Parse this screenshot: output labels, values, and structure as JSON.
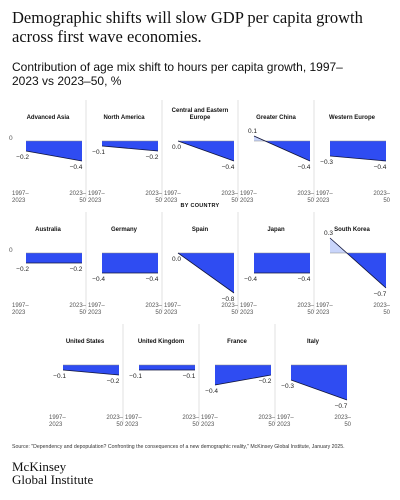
{
  "title": "Demographic shifts will slow GDP per capita growth across first wave economies.",
  "subtitle": "Contribution of age mix shift to hours per capita growth, 1997–2023 vs 2023–50, %",
  "section_label": "BY COUNTRY",
  "source": "Source: \"Dependency and depopulation? Confronting the consequences of a new demographic reality,\" McKinsey Global Institute, January 2025.",
  "brand_name": "McKinsey",
  "brand_unit": "Global Institute",
  "chart_data": [
    {
      "type": "area",
      "title": "Advanced Asia",
      "categories": [
        "1997–2023",
        "2023–50"
      ],
      "values": [
        -0.2,
        -0.4
      ],
      "value_labels": [
        "−0.2",
        "−0.4"
      ],
      "ylim": [
        -0.8,
        0.3
      ],
      "yticks": [
        0
      ],
      "color": "#2f4cf2",
      "positive_color": "#c9d5fb"
    },
    {
      "type": "area",
      "title": "North America",
      "categories": [
        "1997–2023",
        "2023–50"
      ],
      "values": [
        -0.1,
        -0.2
      ],
      "value_labels": [
        "−0.1",
        "−0.2"
      ],
      "ylim": [
        -0.8,
        0.3
      ],
      "color": "#2f4cf2",
      "positive_color": "#c9d5fb"
    },
    {
      "type": "area",
      "title": "Central and Eastern Europe",
      "categories": [
        "1997–2023",
        "2023–50"
      ],
      "values": [
        0.0,
        -0.4
      ],
      "value_labels": [
        "0.0",
        "−0.4"
      ],
      "ylim": [
        -0.8,
        0.3
      ],
      "color": "#2f4cf2",
      "positive_color": "#c9d5fb"
    },
    {
      "type": "area",
      "title": "Greater China",
      "categories": [
        "1997–2023",
        "2023–50"
      ],
      "values": [
        0.1,
        -0.4
      ],
      "value_labels": [
        "0.1",
        "−0.4"
      ],
      "ylim": [
        -0.8,
        0.3
      ],
      "color": "#2f4cf2",
      "positive_color": "#c9d5fb"
    },
    {
      "type": "area",
      "title": "Western Europe",
      "categories": [
        "1997–2023",
        "2023–50"
      ],
      "values": [
        -0.3,
        -0.4
      ],
      "value_labels": [
        "−0.3",
        "−0.4"
      ],
      "ylim": [
        -0.8,
        0.3
      ],
      "color": "#2f4cf2",
      "positive_color": "#c9d5fb"
    },
    {
      "type": "area",
      "title": "Australia",
      "categories": [
        "1997–2023",
        "2023–50"
      ],
      "values": [
        -0.2,
        -0.2
      ],
      "value_labels": [
        "−0.2",
        "−0.2"
      ],
      "ylim": [
        -0.8,
        0.3
      ],
      "yticks": [
        0
      ],
      "color": "#2f4cf2",
      "positive_color": "#c9d5fb"
    },
    {
      "type": "area",
      "title": "Germany",
      "categories": [
        "1997–2023",
        "2023–50"
      ],
      "values": [
        -0.4,
        -0.4
      ],
      "value_labels": [
        "−0.4",
        "−0.4"
      ],
      "ylim": [
        -0.8,
        0.3
      ],
      "color": "#2f4cf2",
      "positive_color": "#c9d5fb"
    },
    {
      "type": "area",
      "title": "Spain",
      "categories": [
        "1997–2023",
        "2023–50"
      ],
      "values": [
        0.0,
        -0.8
      ],
      "value_labels": [
        "0.0",
        "−0.8"
      ],
      "ylim": [
        -0.8,
        0.3
      ],
      "color": "#2f4cf2",
      "positive_color": "#c9d5fb"
    },
    {
      "type": "area",
      "title": "Japan",
      "categories": [
        "1997–2023",
        "2023–50"
      ],
      "values": [
        -0.4,
        -0.4
      ],
      "value_labels": [
        "−0.4",
        "−0.4"
      ],
      "ylim": [
        -0.8,
        0.3
      ],
      "color": "#2f4cf2",
      "positive_color": "#c9d5fb"
    },
    {
      "type": "area",
      "title": "South Korea",
      "categories": [
        "1997–2023",
        "2023–50"
      ],
      "values": [
        0.3,
        -0.7
      ],
      "value_labels": [
        "0.3",
        "−0.7"
      ],
      "ylim": [
        -0.8,
        0.3
      ],
      "color": "#2f4cf2",
      "positive_color": "#c9d5fb"
    },
    {
      "type": "area",
      "title": "United States",
      "categories": [
        "1997–2023",
        "2023–50"
      ],
      "values": [
        -0.1,
        -0.2
      ],
      "value_labels": [
        "−0.1",
        "−0.2"
      ],
      "ylim": [
        -0.8,
        0.3
      ],
      "color": "#2f4cf2",
      "positive_color": "#c9d5fb"
    },
    {
      "type": "area",
      "title": "United Kingdom",
      "categories": [
        "1997–2023",
        "2023–50"
      ],
      "values": [
        -0.1,
        -0.1
      ],
      "value_labels": [
        "−0.1",
        "−0.1"
      ],
      "ylim": [
        -0.8,
        0.3
      ],
      "color": "#2f4cf2",
      "positive_color": "#c9d5fb"
    },
    {
      "type": "area",
      "title": "France",
      "categories": [
        "1997–2023",
        "2023–50"
      ],
      "values": [
        -0.4,
        -0.2
      ],
      "value_labels": [
        "−0.4",
        "−0.2"
      ],
      "ylim": [
        -0.8,
        0.3
      ],
      "color": "#2f4cf2",
      "positive_color": "#c9d5fb"
    },
    {
      "type": "area",
      "title": "Italy",
      "categories": [
        "1997–2023",
        "2023–50"
      ],
      "values": [
        -0.3,
        -0.7
      ],
      "value_labels": [
        "−0.3",
        "−0.7"
      ],
      "ylim": [
        -0.8,
        0.3
      ],
      "color": "#2f4cf2",
      "positive_color": "#c9d5fb"
    }
  ]
}
